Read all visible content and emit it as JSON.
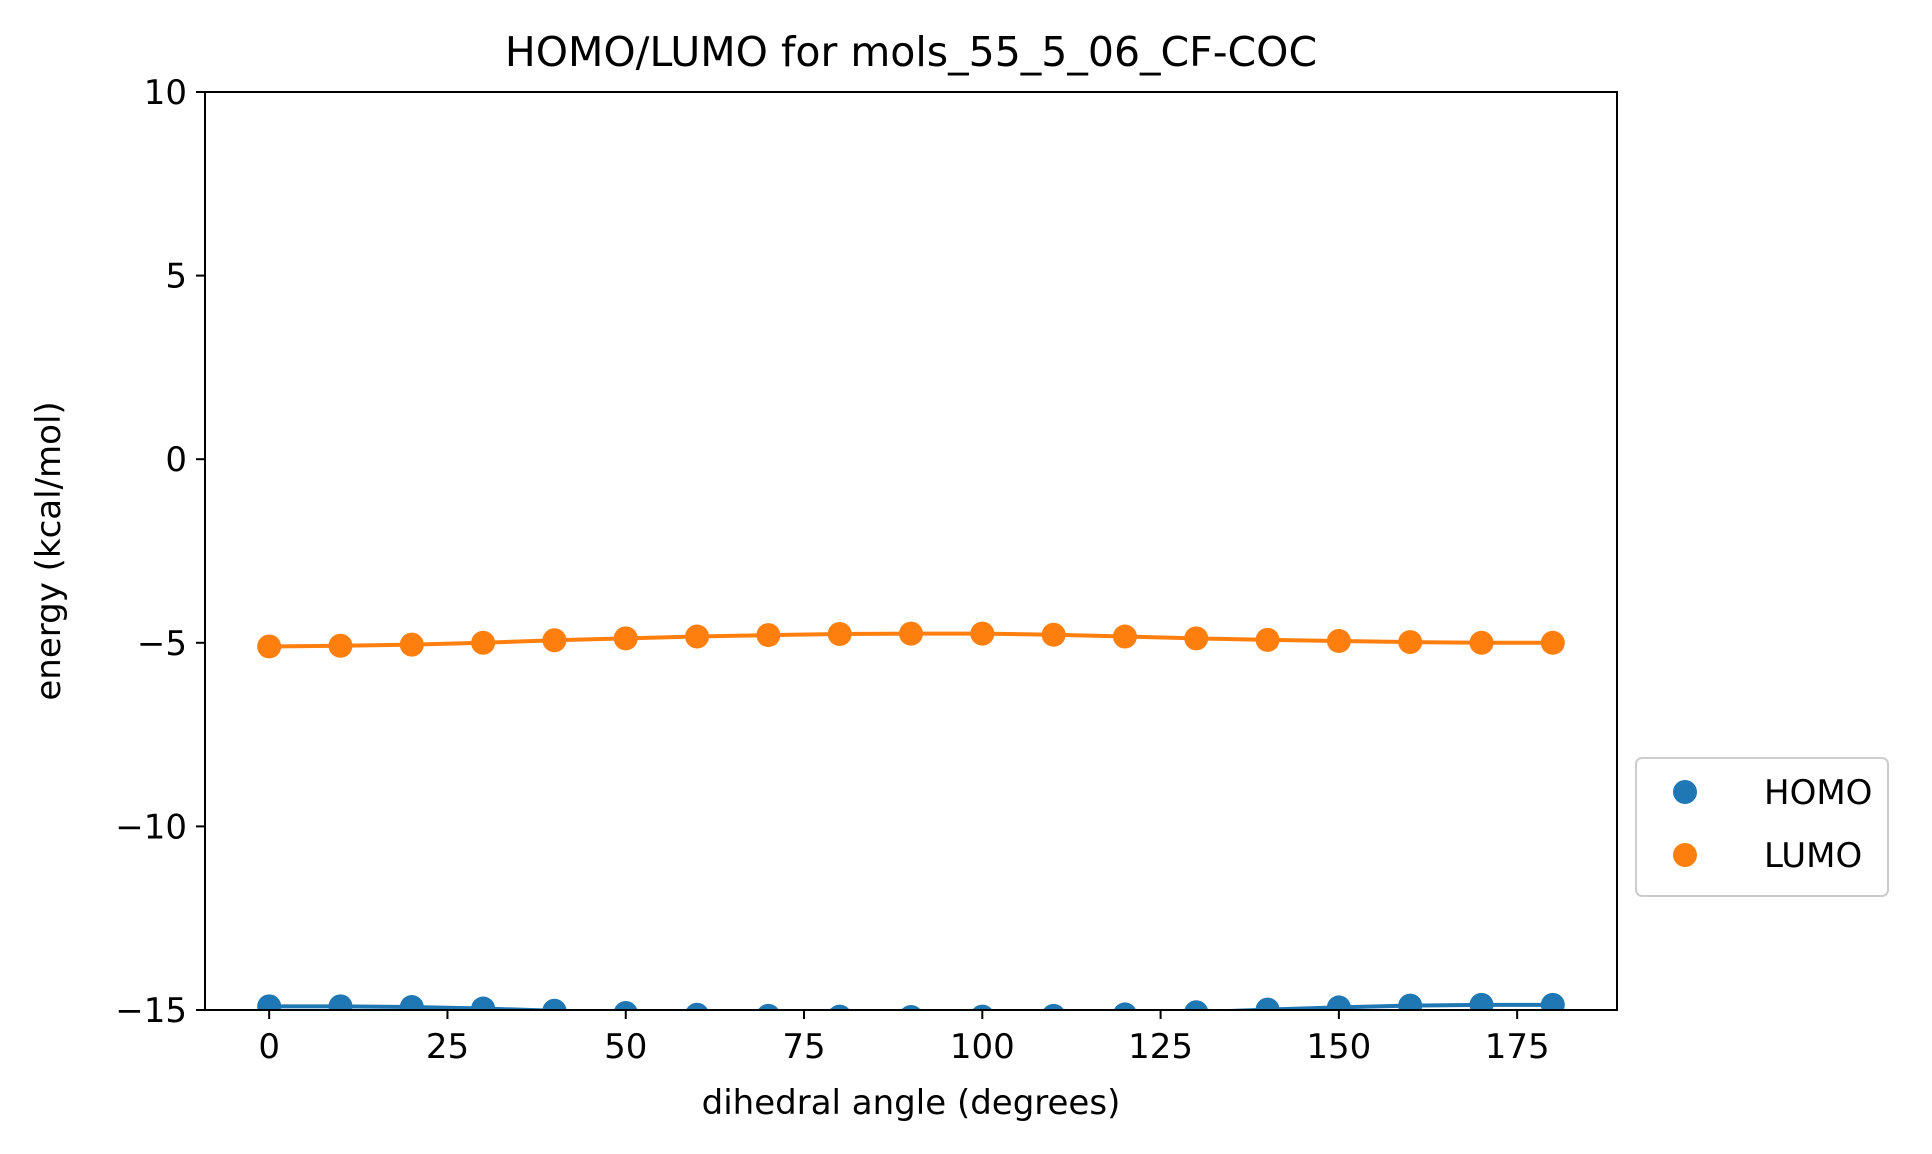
{
  "chart_data": {
    "type": "scatter",
    "title": "HOMO/LUMO for mols_55_5_06_CF-COC",
    "xlabel": "dihedral angle (degrees)",
    "ylabel": "energy (kcal/mol)",
    "xlim": [
      -9,
      189
    ],
    "ylim": [
      -15,
      10
    ],
    "xticks": [
      0,
      25,
      50,
      75,
      100,
      125,
      150,
      175
    ],
    "yticks": [
      10,
      5,
      0,
      -5,
      -10,
      -15
    ],
    "ytick_labels": [
      "10",
      "5",
      "0",
      "−5",
      "−10",
      "−15"
    ],
    "grid": false,
    "legend_position": "outside-right",
    "x": [
      0,
      10,
      20,
      30,
      40,
      50,
      60,
      70,
      80,
      90,
      100,
      110,
      120,
      130,
      140,
      150,
      160,
      170,
      180
    ],
    "series": [
      {
        "name": "HOMO",
        "color": "#1f77b4",
        "values": [
          -14.9,
          -14.9,
          -14.92,
          -14.96,
          -15.02,
          -15.08,
          -15.13,
          -15.16,
          -15.18,
          -15.19,
          -15.18,
          -15.16,
          -15.12,
          -15.06,
          -14.99,
          -14.93,
          -14.88,
          -14.86,
          -14.86
        ]
      },
      {
        "name": "LUMO",
        "color": "#ff7f0e",
        "values": [
          -5.1,
          -5.08,
          -5.05,
          -5.0,
          -4.93,
          -4.88,
          -4.83,
          -4.79,
          -4.76,
          -4.75,
          -4.75,
          -4.78,
          -4.83,
          -4.88,
          -4.92,
          -4.95,
          -4.98,
          -5.0,
          -5.0
        ]
      }
    ]
  }
}
